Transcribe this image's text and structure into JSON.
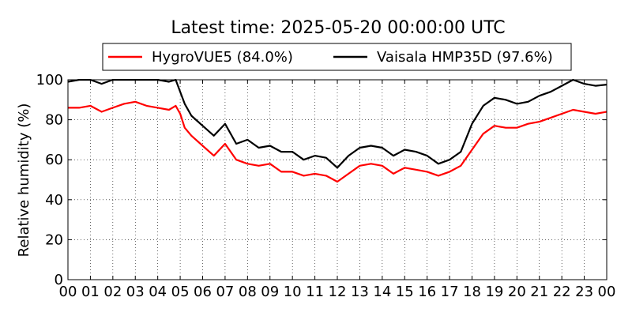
{
  "chart_data": {
    "type": "line",
    "title": "Latest time: 2025-05-20 00:00:00 UTC",
    "xlabel": "",
    "ylabel": "Relative humidity (%)",
    "xlim": [
      0,
      24
    ],
    "ylim": [
      0,
      100
    ],
    "grid": true,
    "legend_position": "top",
    "x_ticks": [
      "00",
      "01",
      "02",
      "03",
      "04",
      "05",
      "06",
      "07",
      "08",
      "09",
      "10",
      "11",
      "12",
      "13",
      "14",
      "15",
      "16",
      "17",
      "18",
      "19",
      "20",
      "21",
      "22",
      "23",
      "00"
    ],
    "y_ticks": [
      "0",
      "20",
      "40",
      "60",
      "80",
      "100"
    ],
    "series": [
      {
        "name": "HygroVUE5 (84.0%)",
        "color": "#ff0000",
        "x": [
          0,
          0.5,
          1,
          1.5,
          2,
          2.5,
          3,
          3.5,
          4,
          4.5,
          4.8,
          5,
          5.2,
          5.5,
          6,
          6.5,
          7,
          7.5,
          8,
          8.5,
          9,
          9.5,
          10,
          10.5,
          11,
          11.5,
          12,
          12.5,
          13,
          13.5,
          14,
          14.5,
          15,
          15.5,
          16,
          16.5,
          17,
          17.5,
          18,
          18.5,
          19,
          19.5,
          20,
          20.5,
          21,
          21.5,
          22,
          22.5,
          23,
          23.5,
          24
        ],
        "values": [
          86,
          86,
          87,
          84,
          86,
          88,
          89,
          87,
          86,
          85,
          87,
          83,
          76,
          72,
          67,
          62,
          68,
          60,
          58,
          57,
          58,
          54,
          54,
          52,
          53,
          52,
          49,
          53,
          57,
          58,
          57,
          53,
          56,
          55,
          54,
          52,
          54,
          57,
          65,
          73,
          77,
          76,
          76,
          78,
          79,
          81,
          83,
          85,
          84,
          83,
          84
        ]
      },
      {
        "name": "Vaisala HMP35D (97.6%)",
        "color": "#000000",
        "x": [
          0,
          0.5,
          1,
          1.5,
          2,
          2.5,
          3,
          3.5,
          4,
          4.5,
          4.8,
          5,
          5.2,
          5.5,
          6,
          6.5,
          7,
          7.5,
          8,
          8.5,
          9,
          9.5,
          10,
          10.5,
          11,
          11.5,
          12,
          12.5,
          13,
          13.5,
          14,
          14.5,
          15,
          15.5,
          16,
          16.5,
          17,
          17.5,
          18,
          18.5,
          19,
          19.5,
          20,
          20.5,
          21,
          21.5,
          22,
          22.5,
          23,
          23.5,
          24
        ],
        "values": [
          99,
          100,
          100,
          98,
          100,
          100,
          100,
          100,
          100,
          99,
          100,
          94,
          88,
          82,
          77,
          72,
          78,
          68,
          70,
          66,
          67,
          64,
          64,
          60,
          62,
          61,
          56,
          62,
          66,
          67,
          66,
          62,
          65,
          64,
          62,
          58,
          60,
          64,
          78,
          87,
          91,
          90,
          88,
          89,
          92,
          94,
          97,
          100,
          98,
          97,
          97.6
        ]
      }
    ]
  }
}
